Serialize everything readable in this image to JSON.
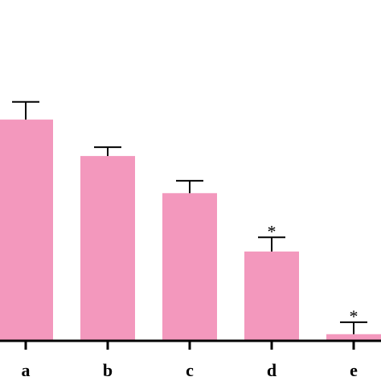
{
  "chart_data": {
    "type": "bar",
    "categories": [
      "a",
      "b",
      "c",
      "d",
      "e"
    ],
    "values": [
      100.1,
      83.6,
      66.8,
      40.4,
      3.0
    ],
    "errors": [
      8.0,
      4.0,
      5.6,
      6.4,
      5.4
    ],
    "annotations": [
      "",
      "",
      "",
      "*",
      "*"
    ],
    "bar_color": "#f398bd",
    "title": "",
    "xlabel": "",
    "ylabel": "",
    "ylim": [
      0,
      115
    ],
    "grid": false
  }
}
